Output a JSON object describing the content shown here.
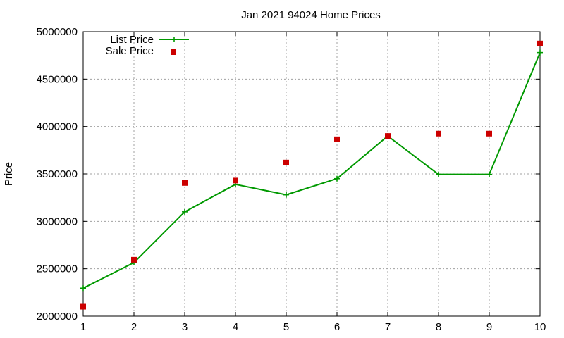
{
  "chart_data": {
    "type": "line",
    "title": "Jan 2021 94024 Home Prices",
    "xlabel": "",
    "ylabel": "Price",
    "x": [
      1,
      2,
      3,
      4,
      5,
      6,
      7,
      8,
      9,
      10
    ],
    "xlim": [
      1,
      10
    ],
    "ylim": [
      2000000,
      5000000
    ],
    "xticks": [
      1,
      2,
      3,
      4,
      5,
      6,
      7,
      8,
      9,
      10
    ],
    "yticks": [
      2000000,
      2500000,
      3000000,
      3500000,
      4000000,
      4500000,
      5000000
    ],
    "grid": true,
    "legend_position": "top-left",
    "series": [
      {
        "name": "List Price",
        "style": "line-with-plus-markers",
        "color": "#009900",
        "values": [
          2295000,
          2565000,
          3100000,
          3390000,
          3280000,
          3450000,
          3900000,
          3495000,
          3495000,
          4780000
        ]
      },
      {
        "name": "Sale Price",
        "style": "square-points",
        "color": "#cc0000",
        "values": [
          2100000,
          2595000,
          3405000,
          3430000,
          3620000,
          3865000,
          3900000,
          3925000,
          3925000,
          4875000
        ]
      }
    ]
  }
}
